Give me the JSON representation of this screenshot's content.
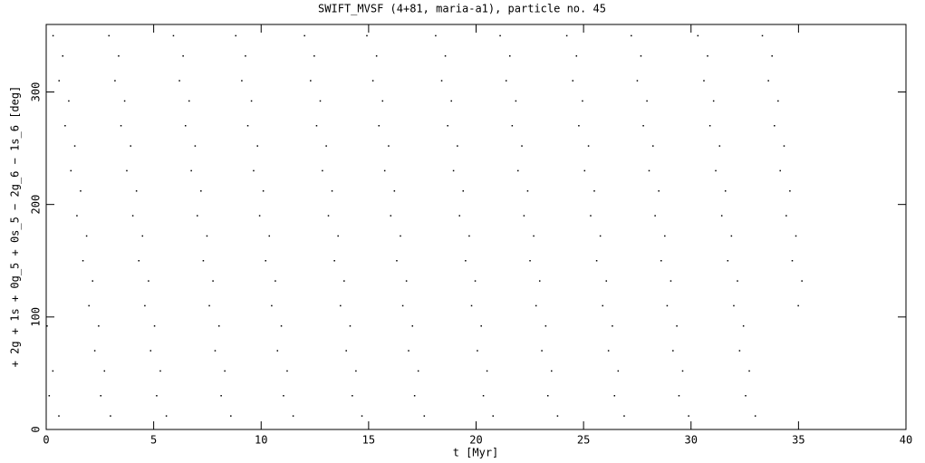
{
  "chart_data": {
    "type": "scatter",
    "title": "SWIFT_MVSF (4+81, maria-a1), particle no. 45",
    "x_label": "t [Myr]",
    "y_label": "+ 2g + 1s + 0g_5 + 0s_5 − 2g_6 − 1s_6 [deg]",
    "xlim": [
      0,
      40
    ],
    "ylim": [
      0,
      360
    ],
    "xticks": [
      0,
      5,
      10,
      15,
      20,
      25,
      30,
      35,
      40
    ],
    "yticks": [
      0,
      100,
      200,
      300
    ],
    "color": "#000000",
    "x": [
      0.04,
      0.31,
      0.14,
      0.59,
      0.32,
      0.6,
      0.88,
      1.15,
      1.43,
      1.71,
      1.99,
      2.26,
      2.54,
      0.77,
      1.05,
      1.33,
      1.6,
      1.88,
      2.16,
      2.44,
      2.71,
      2.99,
      2.92,
      3.2,
      3.48,
      3.75,
      4.03,
      4.31,
      4.59,
      4.86,
      5.14,
      3.37,
      3.65,
      3.93,
      4.2,
      4.48,
      4.76,
      5.04,
      5.31,
      5.59,
      5.92,
      6.2,
      6.48,
      6.75,
      7.03,
      7.31,
      7.59,
      7.86,
      8.14,
      6.37,
      6.65,
      6.93,
      7.2,
      7.48,
      7.76,
      8.04,
      8.31,
      8.59,
      8.82,
      9.1,
      9.38,
      9.65,
      9.93,
      10.21,
      10.49,
      10.76,
      11.04,
      9.27,
      9.55,
      9.83,
      10.1,
      10.38,
      10.66,
      10.94,
      11.21,
      11.49,
      12.02,
      12.3,
      12.58,
      12.85,
      13.13,
      13.41,
      13.69,
      13.96,
      14.24,
      12.47,
      12.75,
      13.03,
      13.3,
      13.58,
      13.86,
      14.14,
      14.41,
      14.69,
      14.92,
      15.2,
      15.48,
      15.75,
      16.03,
      16.31,
      16.59,
      16.86,
      17.14,
      15.37,
      15.65,
      15.93,
      16.2,
      16.48,
      16.76,
      17.04,
      17.31,
      17.59,
      18.12,
      18.4,
      18.68,
      18.95,
      19.23,
      19.51,
      19.79,
      20.06,
      20.34,
      18.57,
      18.85,
      19.13,
      19.4,
      19.68,
      19.96,
      20.24,
      20.51,
      20.79,
      21.12,
      21.4,
      21.68,
      21.95,
      22.23,
      22.51,
      22.79,
      23.06,
      23.34,
      21.57,
      21.85,
      22.13,
      22.4,
      22.68,
      22.96,
      23.24,
      23.51,
      23.79,
      24.22,
      24.5,
      24.78,
      25.05,
      25.33,
      25.61,
      25.89,
      26.16,
      26.44,
      24.67,
      24.95,
      25.23,
      25.5,
      25.78,
      26.06,
      26.34,
      26.61,
      26.89,
      27.22,
      27.5,
      27.78,
      28.05,
      28.33,
      28.61,
      28.89,
      29.16,
      29.44,
      27.67,
      27.95,
      28.23,
      28.5,
      28.78,
      29.06,
      29.34,
      29.61,
      29.89,
      30.32,
      30.6,
      30.88,
      31.15,
      31.43,
      31.71,
      31.99,
      32.26,
      32.54,
      30.77,
      31.05,
      31.33,
      31.6,
      31.88,
      32.16,
      32.44,
      32.71,
      32.99,
      33.32,
      33.6,
      33.88,
      34.15,
      34.43,
      34.71,
      34.99,
      33.77,
      34.05,
      34.33,
      34.6,
      34.88,
      35.16
    ],
    "values": [
      92,
      52,
      30,
      12,
      350,
      310,
      270,
      230,
      190,
      150,
      110,
      70,
      30,
      332,
      292,
      252,
      212,
      172,
      132,
      92,
      52,
      12,
      350,
      310,
      270,
      230,
      190,
      150,
      110,
      70,
      30,
      332,
      292,
      252,
      212,
      172,
      132,
      92,
      52,
      12,
      350,
      310,
      270,
      230,
      190,
      150,
      110,
      70,
      30,
      332,
      292,
      252,
      212,
      172,
      132,
      92,
      52,
      12,
      350,
      310,
      270,
      230,
      190,
      150,
      110,
      70,
      30,
      332,
      292,
      252,
      212,
      172,
      132,
      92,
      52,
      12,
      350,
      310,
      270,
      230,
      190,
      150,
      110,
      70,
      30,
      332,
      292,
      252,
      212,
      172,
      132,
      92,
      52,
      12,
      350,
      310,
      270,
      230,
      190,
      150,
      110,
      70,
      30,
      332,
      292,
      252,
      212,
      172,
      132,
      92,
      52,
      12,
      350,
      310,
      270,
      230,
      190,
      150,
      110,
      70,
      30,
      332,
      292,
      252,
      212,
      172,
      132,
      92,
      52,
      12,
      350,
      310,
      270,
      230,
      190,
      150,
      110,
      70,
      30,
      332,
      292,
      252,
      212,
      172,
      132,
      92,
      52,
      12,
      350,
      310,
      270,
      230,
      190,
      150,
      110,
      70,
      30,
      332,
      292,
      252,
      212,
      172,
      132,
      92,
      52,
      12,
      350,
      310,
      270,
      230,
      190,
      150,
      110,
      70,
      30,
      332,
      292,
      252,
      212,
      172,
      132,
      92,
      52,
      12,
      350,
      310,
      270,
      230,
      190,
      150,
      110,
      70,
      30,
      332,
      292,
      252,
      212,
      172,
      132,
      92,
      52,
      12,
      350,
      310,
      270,
      230,
      190,
      150,
      110,
      332,
      292,
      252,
      212,
      172,
      132
    ]
  }
}
